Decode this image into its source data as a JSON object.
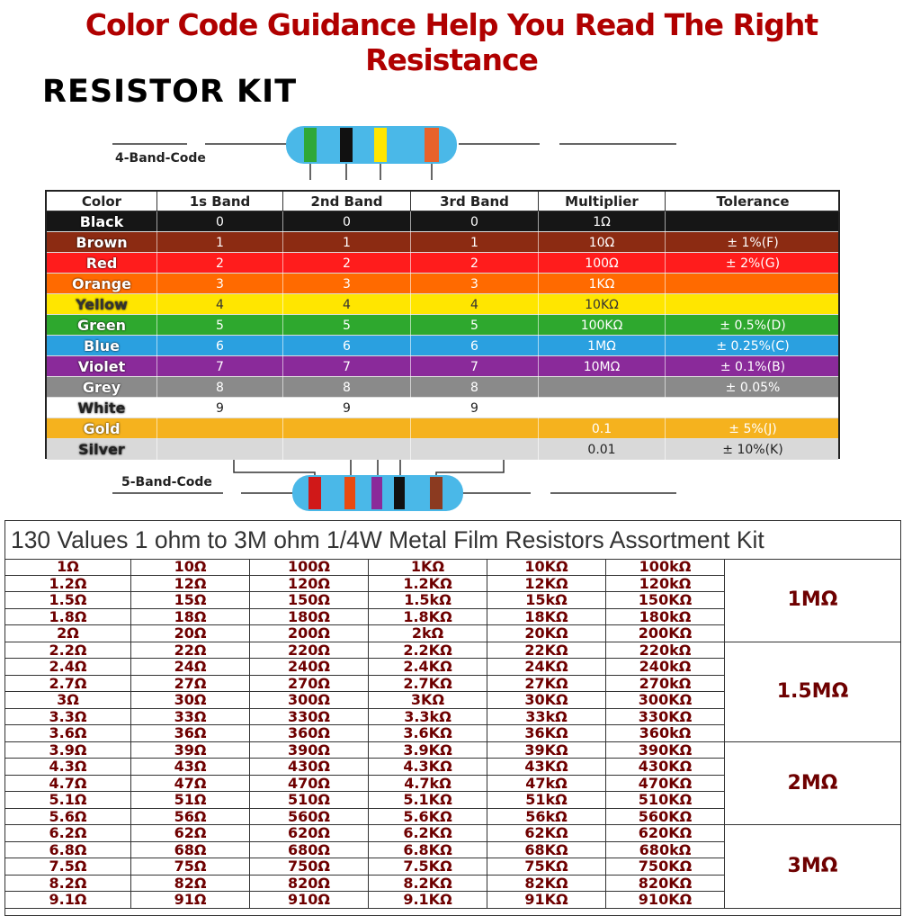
{
  "header": {
    "title": "Color Code Guidance Help You Read The Right Resistance",
    "kit_title": "RESISTOR KIT",
    "band4_label": "4-Band-Code",
    "band5_label": "5-Band-Code"
  },
  "color_table": {
    "columns": [
      "Color",
      "1s Band",
      "2nd Band",
      "3rd Band",
      "Multiplier",
      "Tolerance"
    ],
    "rows": [
      [
        "Black",
        "0",
        "0",
        "0",
        "1Ω",
        null
      ],
      [
        "Brown",
        "1",
        "1",
        "1",
        "10Ω",
        "± 1%(F)"
      ],
      [
        "Red",
        "2",
        "2",
        "2",
        "100Ω",
        "± 2%(G)"
      ],
      [
        "Orange",
        "3",
        "3",
        "3",
        "1KΩ",
        null
      ],
      [
        "Yellow",
        "4",
        "4",
        "4",
        "10KΩ",
        null
      ],
      [
        "Green",
        "5",
        "5",
        "5",
        "100KΩ",
        "± 0.5%(D)"
      ],
      [
        "Blue",
        "6",
        "6",
        "6",
        "1MΩ",
        "± 0.25%(C)"
      ],
      [
        "Violet",
        "7",
        "7",
        "7",
        "10MΩ",
        "± 0.1%(B)"
      ],
      [
        "Grey",
        "8",
        "8",
        "8",
        null,
        "± 0.05%"
      ],
      [
        "White",
        "9",
        "9",
        "9",
        null,
        null
      ],
      [
        "Gold",
        null,
        null,
        null,
        "0.1",
        "± 5%(J)"
      ],
      [
        "Silver",
        null,
        null,
        null,
        "0.01",
        "± 10%(K)"
      ]
    ]
  },
  "kit_table": {
    "title": "130 Values 1 ohm to 3M ohm 1/4W Metal Film Resistors Assortment Kit",
    "rows": [
      [
        "1Ω",
        "10Ω",
        "100Ω",
        "1KΩ",
        "10KΩ",
        "100kΩ"
      ],
      [
        "1.2Ω",
        "12Ω",
        "120Ω",
        "1.2KΩ",
        "12KΩ",
        "120kΩ"
      ],
      [
        "1.5Ω",
        "15Ω",
        "150Ω",
        "1.5kΩ",
        "15kΩ",
        "150KΩ"
      ],
      [
        "1.8Ω",
        "18Ω",
        "180Ω",
        "1.8KΩ",
        "18KΩ",
        "180kΩ"
      ],
      [
        "2Ω",
        "20Ω",
        "200Ω",
        "2kΩ",
        "20KΩ",
        "200KΩ"
      ],
      [
        "2.2Ω",
        "22Ω",
        "220Ω",
        "2.2KΩ",
        "22KΩ",
        "220kΩ"
      ],
      [
        "2.4Ω",
        "24Ω",
        "240Ω",
        "2.4KΩ",
        "24KΩ",
        "240kΩ"
      ],
      [
        "2.7Ω",
        "27Ω",
        "270Ω",
        "2.7KΩ",
        "27KΩ",
        "270kΩ"
      ],
      [
        "3Ω",
        "30Ω",
        "300Ω",
        "3KΩ",
        "30KΩ",
        "300KΩ"
      ],
      [
        "3.3Ω",
        "33Ω",
        "330Ω",
        "3.3kΩ",
        "33kΩ",
        "330KΩ"
      ],
      [
        "3.6Ω",
        "36Ω",
        "360Ω",
        "3.6KΩ",
        "36KΩ",
        "360kΩ"
      ],
      [
        "3.9Ω",
        "39Ω",
        "390Ω",
        "3.9KΩ",
        "39KΩ",
        "390KΩ"
      ],
      [
        "4.3Ω",
        "43Ω",
        "430Ω",
        "4.3KΩ",
        "43KΩ",
        "430KΩ"
      ],
      [
        "4.7Ω",
        "47Ω",
        "470Ω",
        "4.7kΩ",
        "47kΩ",
        "470KΩ"
      ],
      [
        "5.1Ω",
        "51Ω",
        "510Ω",
        "5.1KΩ",
        "51kΩ",
        "510KΩ"
      ],
      [
        "5.6Ω",
        "56Ω",
        "560Ω",
        "5.6KΩ",
        "56kΩ",
        "560KΩ"
      ],
      [
        "6.2Ω",
        "62Ω",
        "620Ω",
        "6.2KΩ",
        "62KΩ",
        "620KΩ"
      ],
      [
        "6.8Ω",
        "68Ω",
        "680Ω",
        "6.8KΩ",
        "68KΩ",
        "680kΩ"
      ],
      [
        "7.5Ω",
        "75Ω",
        "750Ω",
        "7.5KΩ",
        "75KΩ",
        "750KΩ"
      ],
      [
        "8.2Ω",
        "82Ω",
        "820Ω",
        "8.2KΩ",
        "82KΩ",
        "820KΩ"
      ],
      [
        "9.1Ω",
        "91Ω",
        "910Ω",
        "9.1KΩ",
        "91KΩ",
        "910KΩ"
      ]
    ],
    "groups": [
      "1MΩ",
      "1.5MΩ",
      "2MΩ",
      "3MΩ"
    ]
  }
}
